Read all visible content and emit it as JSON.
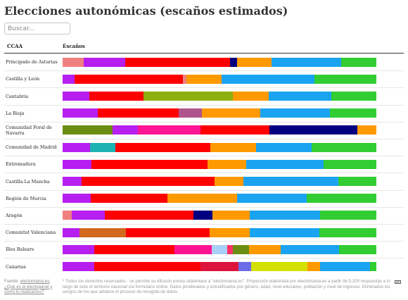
{
  "page": {
    "title": "Elecciones autonómicas (escaños estimados)",
    "search_placeholder": "Buscar...",
    "column_ccaa": "CCAA",
    "column_escanos": "Escaños"
  },
  "footer": {
    "source_prefix": "Fuente: ",
    "source_link": "electomania.es",
    "source_suffix": ", ",
    "question_link": "¿Qué es el electopanel y cómo lo realizamos?",
    "note": "* Todos los derechos reservados - se permite su difusión previa cita/enlace a \"electomania.es\". Proyección elaborada por electomania.es a partir de 5.200 respuestas a lo largo de todo el territorio nacional vía formulario online. Datos ponderados y estratificados por género, edad, nivel educativo, población y nivel de ingresos. Eliminados los sesgos de los que adolece el proceso de recogida de datos."
  },
  "chart_data": {
    "type": "bar",
    "orientation": "horizontal",
    "stacked": true,
    "normalized": true,
    "categories": [
      "Principado de Asturias",
      "Castilla y León",
      "Cantabria",
      "La Rioja",
      "Comunidad Foral de Navarra",
      "Comunidad de Madrid",
      "Extremadura",
      "Castilla-La Mancha",
      "Región de Murcia",
      "Aragón",
      "Comunitat Valenciana",
      "Illes Balears",
      "Canarias"
    ],
    "rows": [
      {
        "segments": [
          {
            "color": "#f08080",
            "value": 3
          },
          {
            "color": "#b61ff0",
            "value": 6
          },
          {
            "color": "#ff0000",
            "value": 15
          },
          {
            "color": "#000080",
            "value": 1
          },
          {
            "color": "#ff9900",
            "value": 5
          },
          {
            "color": "#1aa3f0",
            "value": 10
          },
          {
            "color": "#32cd32",
            "value": 5
          }
        ]
      },
      {
        "segments": [
          {
            "color": "#b61ff0",
            "value": 3
          },
          {
            "color": "#ff0000",
            "value": 28
          },
          {
            "color": "#f08080",
            "value": 1
          },
          {
            "color": "#ff9900",
            "value": 9
          },
          {
            "color": "#1aa3f0",
            "value": 24
          },
          {
            "color": "#32cd32",
            "value": 16
          }
        ]
      },
      {
        "segments": [
          {
            "color": "#b61ff0",
            "value": 3
          },
          {
            "color": "#ff0000",
            "value": 6
          },
          {
            "color": "#8db010",
            "value": 10
          },
          {
            "color": "#ff9900",
            "value": 4
          },
          {
            "color": "#1aa3f0",
            "value": 7
          },
          {
            "color": "#32cd32",
            "value": 5
          }
        ]
      },
      {
        "segments": [
          {
            "color": "#b61ff0",
            "value": 3
          },
          {
            "color": "#ff0000",
            "value": 7
          },
          {
            "color": "#b0548c",
            "value": 2
          },
          {
            "color": "#ff9900",
            "value": 5
          },
          {
            "color": "#1aa3f0",
            "value": 6
          },
          {
            "color": "#32cd32",
            "value": 4
          }
        ]
      },
      {
        "segments": [
          {
            "color": "#6b8e12",
            "value": 8
          },
          {
            "color": "#b61ff0",
            "value": 4
          },
          {
            "color": "#ff1493",
            "value": 10
          },
          {
            "color": "#ff0000",
            "value": 11
          },
          {
            "color": "#000080",
            "value": 14
          },
          {
            "color": "#ff9900",
            "value": 3
          }
        ]
      },
      {
        "segments": [
          {
            "color": "#b61ff0",
            "value": 12
          },
          {
            "color": "#1cb2b2",
            "value": 11
          },
          {
            "color": "#ff0000",
            "value": 41
          },
          {
            "color": "#ff9900",
            "value": 20
          },
          {
            "color": "#1aa3f0",
            "value": 24
          },
          {
            "color": "#32cd32",
            "value": 28
          }
        ]
      },
      {
        "segments": [
          {
            "color": "#b61ff0",
            "value": 6
          },
          {
            "color": "#ff0000",
            "value": 24
          },
          {
            "color": "#ff9900",
            "value": 8
          },
          {
            "color": "#1aa3f0",
            "value": 16
          },
          {
            "color": "#32cd32",
            "value": 11
          }
        ]
      },
      {
        "segments": [
          {
            "color": "#b61ff0",
            "value": 2
          },
          {
            "color": "#ff0000",
            "value": 14
          },
          {
            "color": "#ff9900",
            "value": 3
          },
          {
            "color": "#1aa3f0",
            "value": 10
          },
          {
            "color": "#32cd32",
            "value": 4
          }
        ]
      },
      {
        "segments": [
          {
            "color": "#b61ff0",
            "value": 4
          },
          {
            "color": "#ff0000",
            "value": 11
          },
          {
            "color": "#ff9900",
            "value": 10
          },
          {
            "color": "#1aa3f0",
            "value": 10
          },
          {
            "color": "#32cd32",
            "value": 10
          }
        ]
      },
      {
        "segments": [
          {
            "color": "#f08080",
            "value": 2
          },
          {
            "color": "#b61ff0",
            "value": 7
          },
          {
            "color": "#ff0000",
            "value": 19
          },
          {
            "color": "#000080",
            "value": 4
          },
          {
            "color": "#ff9900",
            "value": 8
          },
          {
            "color": "#1aa3f0",
            "value": 15
          },
          {
            "color": "#32cd32",
            "value": 12
          }
        ]
      },
      {
        "segments": [
          {
            "color": "#b61ff0",
            "value": 5
          },
          {
            "color": "#d2691e",
            "value": 14
          },
          {
            "color": "#ff0000",
            "value": 25
          },
          {
            "color": "#ff9900",
            "value": 12
          },
          {
            "color": "#1aa3f0",
            "value": 21
          },
          {
            "color": "#32cd32",
            "value": 17
          }
        ]
      },
      {
        "segments": [
          {
            "color": "#b61ff0",
            "value": 6
          },
          {
            "color": "#ff0000",
            "value": 15
          },
          {
            "color": "#ff1493",
            "value": 7
          },
          {
            "color": "#a8cff5",
            "value": 3
          },
          {
            "color": "#ff3366",
            "value": 1
          },
          {
            "color": "#6b8e12",
            "value": 3
          },
          {
            "color": "#ff9900",
            "value": 6
          },
          {
            "color": "#1aa3f0",
            "value": 11
          },
          {
            "color": "#32cd32",
            "value": 7
          }
        ]
      },
      {
        "segments": [
          {
            "color": "#b61ff0",
            "value": 5
          },
          {
            "color": "#ff0000",
            "value": 17
          },
          {
            "color": "#dc143c",
            "value": 6
          },
          {
            "color": "#6c6ce8",
            "value": 2
          },
          {
            "color": "#d4e000",
            "value": 9
          },
          {
            "color": "#ff9900",
            "value": 2
          },
          {
            "color": "#1aa3f0",
            "value": 8
          },
          {
            "color": "#32cd32",
            "value": 1
          }
        ]
      }
    ]
  }
}
